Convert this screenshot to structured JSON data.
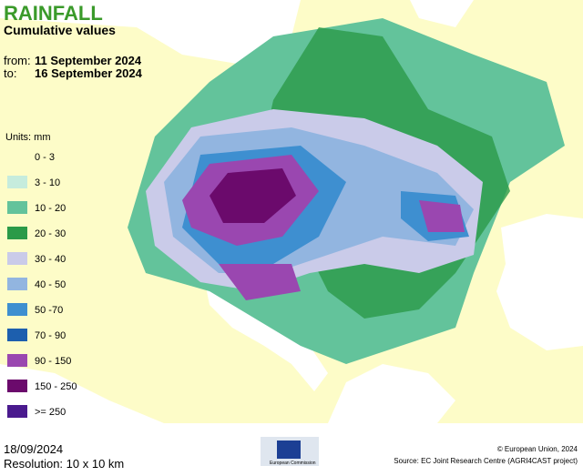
{
  "header": {
    "title": "RAINFALL",
    "subtitle": "Cumulative values",
    "from_label": "from:",
    "from_date": "11 September 2024",
    "to_label": "to:",
    "to_date": "16 September 2024"
  },
  "legend": {
    "title": "Units: mm",
    "items": [
      {
        "label": "0 - 3",
        "color": "#fdfcc8"
      },
      {
        "label": "3 - 10",
        "color": "#c6ecdd"
      },
      {
        "label": "10 - 20",
        "color": "#63c39b"
      },
      {
        "label": "20 - 30",
        "color": "#2a9a48"
      },
      {
        "label": "30 - 40",
        "color": "#cacbe9"
      },
      {
        "label": "40 - 50",
        "color": "#92b5e0"
      },
      {
        "label": "50 -70",
        "color": "#3e8fd0"
      },
      {
        "label": "70 - 90",
        "color": "#1d5fae"
      },
      {
        "label": "90 - 150",
        "color": "#9a47b0"
      },
      {
        "label": "150 - 250",
        "color": "#6b0a6c"
      },
      {
        "label": ">= 250",
        "color": "#4a1a8e"
      }
    ]
  },
  "footer": {
    "date": "18/09/2024",
    "resolution": "Resolution: 10 x 10 km",
    "logo_text": "European Commission",
    "copyright": "© European Union, 2024",
    "source": "Source: EC Joint Research Centre (AGRI4CAST project)"
  }
}
